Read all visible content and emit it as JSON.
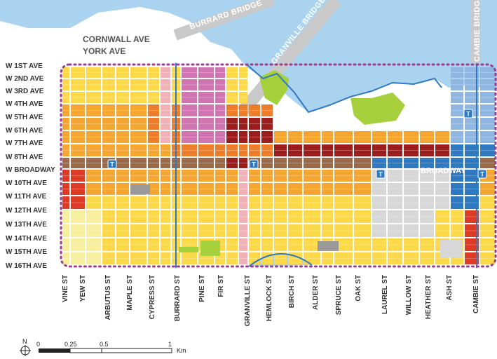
{
  "top_streets": [
    "CORNWALL AVE",
    "YORK AVE"
  ],
  "bridges": [
    "BURRARD BRIDGE",
    "GRANVILLE BRIDGE",
    "CAMBIE BRIDGE"
  ],
  "avenues": [
    "W 1ST AVE",
    "W 2ND AVE",
    "W 3RD AVE",
    "W 4TH AVE",
    "W 5TH AVE",
    "W 6TH AVE",
    "W 7TH AVE",
    "W 8TH AVE",
    "W BROADWAY",
    "W 10TH AVE",
    "W 11TH AVE",
    "W 12TH AVE",
    "W 13TH AVE",
    "W 14TH AVE",
    "W 15TH AVE",
    "W 16TH AVE"
  ],
  "streets": [
    "VINE ST",
    "YEW ST",
    "ARBUTUS ST",
    "MAPLE ST",
    "CYPRESS ST",
    "BURRARD ST",
    "PINE ST",
    "FIR ST",
    "GRANVILLE ST",
    "HEMLOCK ST",
    "BIRCH ST",
    "ALDER ST",
    "SPRUCE ST",
    "OAK ST",
    "LAUREL ST",
    "WILLOW ST",
    "HEATHER ST",
    "ASH ST",
    "CAMBIE ST"
  ],
  "broadway_label": "BROADWAY",
  "transit_icon": "T",
  "scale": {
    "ticks": [
      "0",
      "0.25",
      "0.5",
      "1"
    ],
    "unit": "Km",
    "north": "N"
  },
  "colors": {
    "water": "#a9d3ee",
    "park": "#a6cf3c",
    "yellow": "#fbd949",
    "lightyellow": "#f8ef9e",
    "orange": "#f5a630",
    "darkorange": "#ee7d2a",
    "red": "#dd3b25",
    "pink": "#f0b2b7",
    "magenta": "#d174b2",
    "brown": "#9a6a4a",
    "darkred": "#9d1c1c",
    "blue": "#2f79c1",
    "lightblue": "#8fb6e0",
    "gray": "#9a9a9a",
    "lightgray": "#d7d7d7",
    "boundary": "#9b3b8f"
  }
}
